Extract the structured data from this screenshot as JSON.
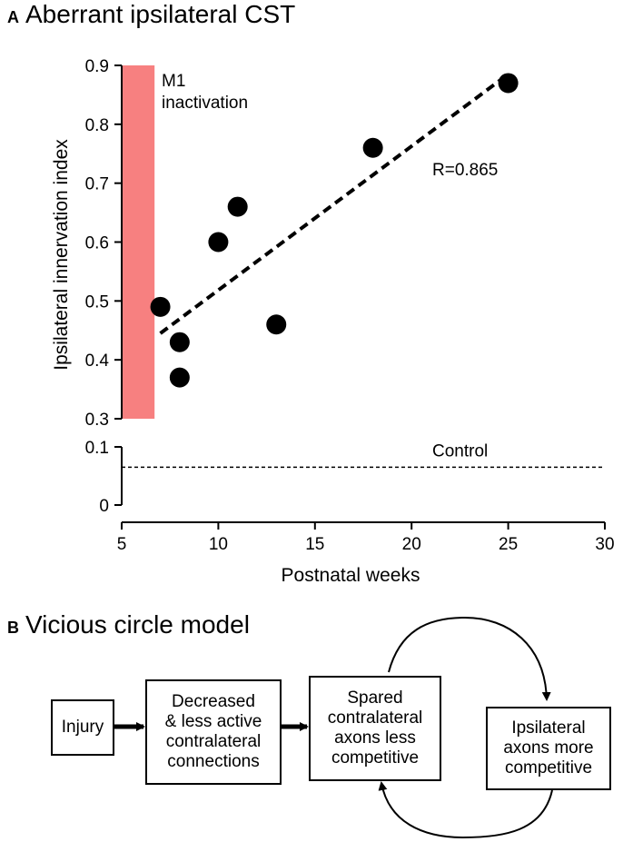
{
  "panel_a": {
    "letter": "A",
    "title": "Aberrant ipsilateral CST"
  },
  "panel_b": {
    "letter": "B",
    "title": "Vicious circle model"
  },
  "chart_data": {
    "type": "scatter",
    "title": "Aberrant ipsilateral CST",
    "xlabel": "Postnatal weeks",
    "ylabel": "Ipsilateral innervation index",
    "xlim": [
      5,
      30
    ],
    "x_ticks": [
      5,
      10,
      15,
      20,
      25,
      30
    ],
    "ylim_upper": [
      0.3,
      0.9
    ],
    "y_ticks_upper": [
      "0.3",
      "0.4",
      "0.5",
      "0.6",
      "0.7",
      "0.8",
      "0.9"
    ],
    "ylim_lower": [
      0,
      0.1
    ],
    "y_ticks_lower": [
      "0",
      "0.1"
    ],
    "grid": false,
    "points": [
      {
        "x": 7,
        "y": 0.49
      },
      {
        "x": 8,
        "y": 0.43
      },
      {
        "x": 8,
        "y": 0.37
      },
      {
        "x": 10,
        "y": 0.6
      },
      {
        "x": 11,
        "y": 0.66
      },
      {
        "x": 13,
        "y": 0.46
      },
      {
        "x": 18,
        "y": 0.76
      },
      {
        "x": 25,
        "y": 0.87
      }
    ],
    "regression": {
      "x0": 7,
      "y0": 0.445,
      "x1": 25,
      "y1": 0.885,
      "label": "R=0.865"
    },
    "inactivation_band": {
      "x0": 5,
      "x1": 6.7,
      "label_line1": "M1",
      "label_line2": "inactivation",
      "color": "#f78080"
    },
    "control": {
      "y": 0.065,
      "label": "Control"
    }
  },
  "diagram": {
    "nodes": [
      {
        "id": "injury",
        "text": "Injury"
      },
      {
        "id": "decreased",
        "text": "Decreased\n& less active\ncontralateral\nconnections"
      },
      {
        "id": "spared",
        "text": "Spared\ncontralateral\naxons less\ncompetitive"
      },
      {
        "id": "ipsilateral",
        "text": "Ipsilateral\naxons more\ncompetitive"
      }
    ]
  }
}
